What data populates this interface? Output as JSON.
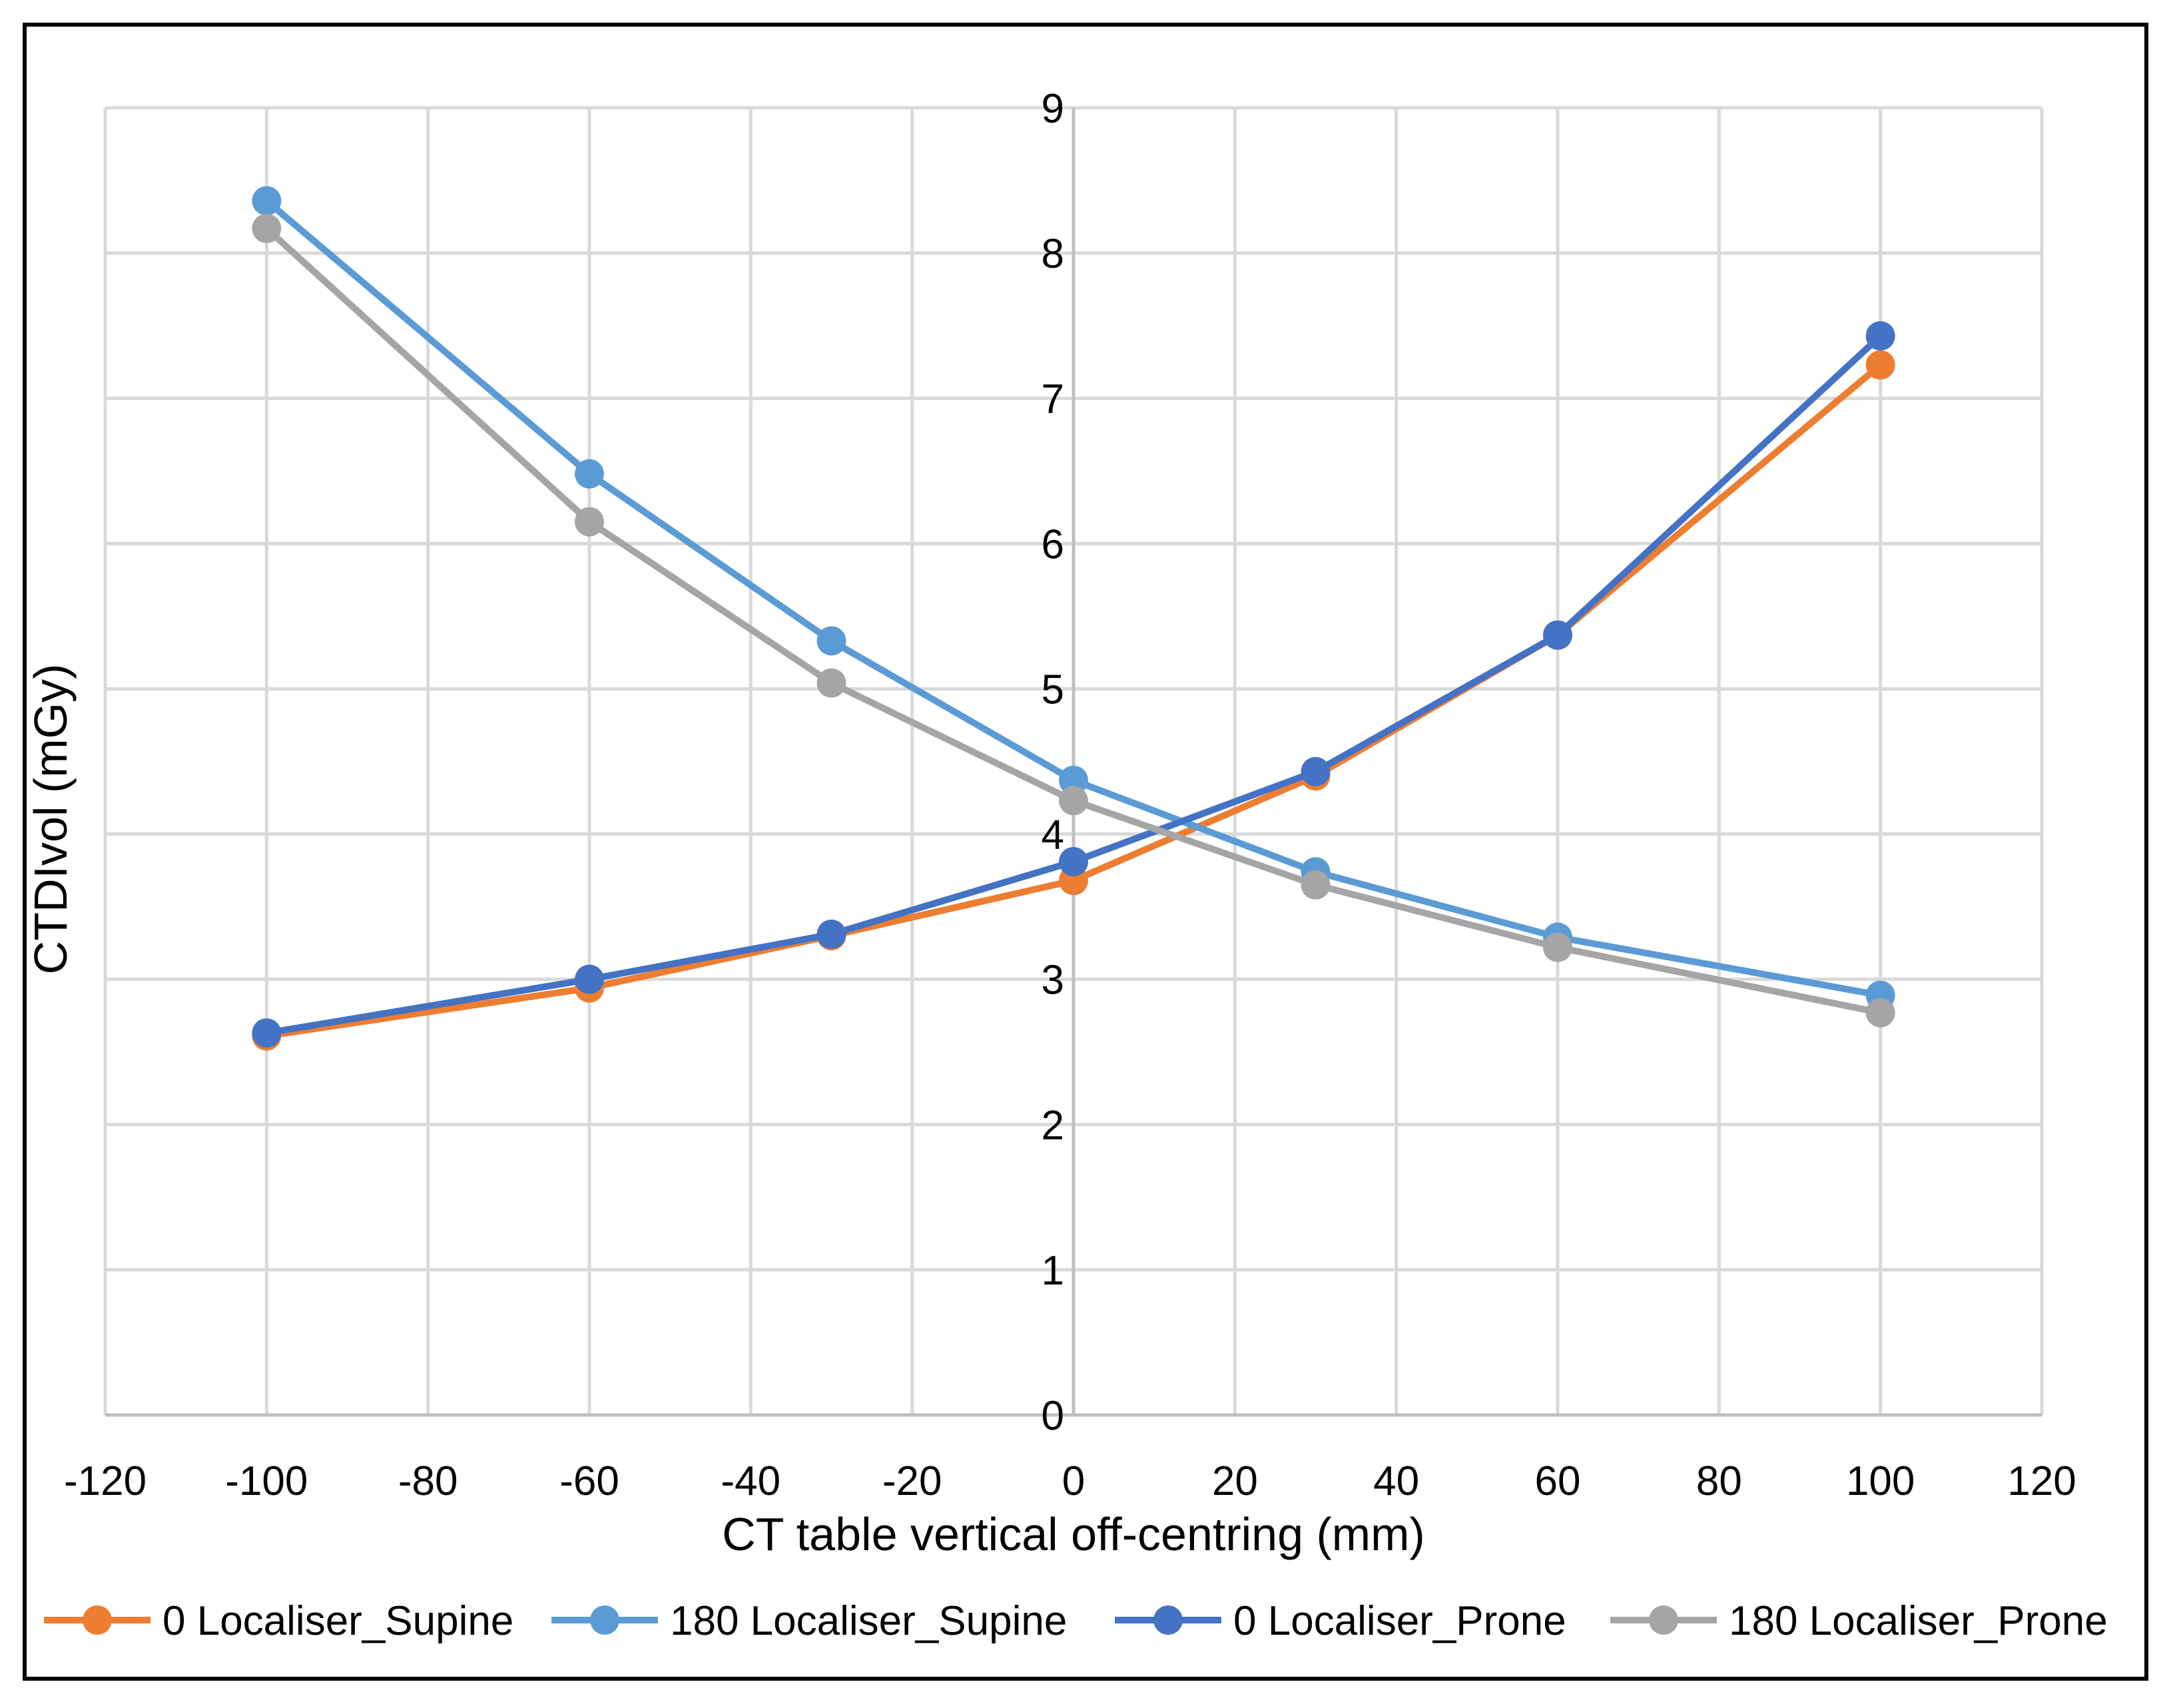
{
  "chart_data": {
    "type": "scatter",
    "title": "",
    "xlabel": "CT table vertical off-centring (mm)",
    "ylabel": "CTDIvol (mGy)",
    "xlim": [
      -120,
      120
    ],
    "ylim": [
      0,
      9
    ],
    "x_ticks": [
      -120,
      -100,
      -80,
      -60,
      -40,
      -20,
      0,
      20,
      40,
      60,
      80,
      100,
      120
    ],
    "y_ticks": [
      0,
      1,
      2,
      3,
      4,
      5,
      6,
      7,
      8,
      9
    ],
    "grid": true,
    "legend_position": "bottom",
    "x": [
      -100,
      -60,
      -30,
      0,
      30,
      60,
      100
    ],
    "series": [
      {
        "name": "0 Localiser_Supine",
        "color": "#ED7D31",
        "values": [
          2.61,
          2.94,
          3.3,
          3.68,
          4.4,
          5.37,
          7.23
        ]
      },
      {
        "name": "180 Localiser_Supine",
        "color": "#5B9BD5",
        "values": [
          8.36,
          6.48,
          5.33,
          4.37,
          3.74,
          3.29,
          2.89
        ]
      },
      {
        "name": "0 Localiser_Prone",
        "color": "#4472C4",
        "values": [
          2.63,
          3.0,
          3.31,
          3.81,
          4.43,
          5.37,
          7.43
        ]
      },
      {
        "name": "180 Localiser_Prone",
        "color": "#A5A5A5",
        "values": [
          8.17,
          6.15,
          5.04,
          4.23,
          3.65,
          3.22,
          2.77
        ]
      }
    ]
  }
}
